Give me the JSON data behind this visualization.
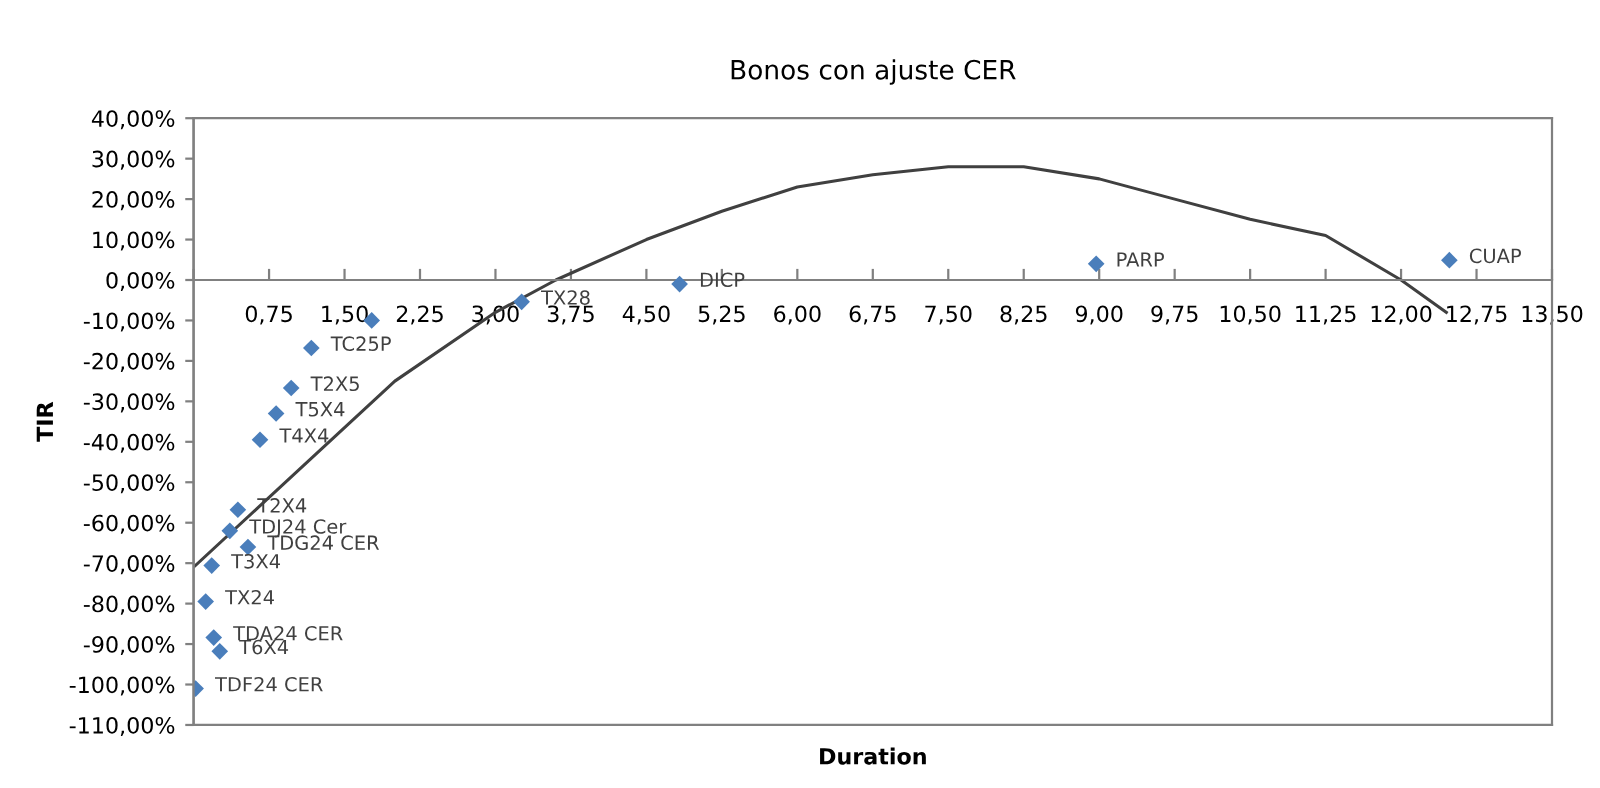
{
  "chart_data": {
    "type": "scatter",
    "title": "Bonos con ajuste CER",
    "xlabel": "Duration",
    "ylabel": "TIR",
    "xlim": [
      0,
      13.5
    ],
    "ylim": [
      -110,
      40
    ],
    "xticks": [
      {
        "value": 0,
        "label": null
      },
      {
        "value": 0.75,
        "label": "0,75"
      },
      {
        "value": 1.5,
        "label": "1,50"
      },
      {
        "value": 2.25,
        "label": "2,25"
      },
      {
        "value": 3.0,
        "label": "3,00"
      },
      {
        "value": 3.75,
        "label": "3,75"
      },
      {
        "value": 4.5,
        "label": "4,50"
      },
      {
        "value": 5.25,
        "label": "5,25"
      },
      {
        "value": 6.0,
        "label": "6,00"
      },
      {
        "value": 6.75,
        "label": "6,75"
      },
      {
        "value": 7.5,
        "label": "7,50"
      },
      {
        "value": 8.25,
        "label": "8,25"
      },
      {
        "value": 9.0,
        "label": "9,00"
      },
      {
        "value": 9.75,
        "label": "9,75"
      },
      {
        "value": 10.5,
        "label": "10,50"
      },
      {
        "value": 11.25,
        "label": "11,25"
      },
      {
        "value": 12.0,
        "label": "12,00"
      },
      {
        "value": 12.75,
        "label": "12,75"
      },
      {
        "value": 13.5,
        "label": "13,50"
      }
    ],
    "yticks": [
      {
        "value": 40,
        "label": "40,00%"
      },
      {
        "value": 30,
        "label": "30,00%"
      },
      {
        "value": 20,
        "label": "20,00%"
      },
      {
        "value": 10,
        "label": "10,00%"
      },
      {
        "value": 0,
        "label": "0,00%"
      },
      {
        "value": -10,
        "label": "-10,00%"
      },
      {
        "value": -20,
        "label": "-20,00%"
      },
      {
        "value": -30,
        "label": "-30,00%"
      },
      {
        "value": -40,
        "label": "-40,00%"
      },
      {
        "value": -50,
        "label": "-50,00%"
      },
      {
        "value": -60,
        "label": "-60,00%"
      },
      {
        "value": -70,
        "label": "-70,00%"
      },
      {
        "value": -80,
        "label": "-80,00%"
      },
      {
        "value": -90,
        "label": "-90,00%"
      },
      {
        "value": -100,
        "label": "-100,00%"
      },
      {
        "value": -110,
        "label": "-110,00%"
      }
    ],
    "grid": false,
    "legend": false,
    "marker": "diamond",
    "series": [
      {
        "color": "#4a7ebb",
        "x": [
          12.48,
          8.97,
          4.83,
          3.26,
          1.77,
          1.17,
          0.97,
          0.82,
          0.66,
          0.44,
          0.36,
          0.54,
          0.18,
          0.12,
          0.2,
          0.26,
          0.02
        ],
        "values": [
          4.9,
          4.0,
          -1,
          -5.4,
          -10,
          -16.8,
          -26.7,
          -33,
          -39.5,
          -56.8,
          -62,
          -66,
          -70.6,
          -79.5,
          -88.4,
          -91.8,
          -101
        ]
      },
      {
        "type": "line",
        "color": "#404040",
        "marker": "none",
        "x": [
          0,
          1,
          2,
          3,
          3.6,
          4.5,
          5.25,
          6,
          6.75,
          7.5,
          8.25,
          9,
          9.75,
          10.5,
          11.25,
          12,
          12.45
        ],
        "values": [
          -71,
          -48,
          -25,
          -8,
          0,
          10,
          17,
          23,
          26,
          28,
          28,
          25,
          20,
          15,
          11,
          0,
          -8
        ]
      }
    ],
    "annotations": [
      {
        "text": "CUAP",
        "x": 12.48,
        "y": 4.9
      },
      {
        "text": "PARP",
        "x": 8.97,
        "y": 4.0
      },
      {
        "text": "DICP",
        "x": 4.83,
        "y": -1
      },
      {
        "text": "TX28",
        "x": 3.26,
        "y": -5.4
      },
      {
        "text": "TC25P",
        "x": 1.17,
        "y": -16.8
      },
      {
        "text": "T2X5",
        "x": 0.97,
        "y": -26.7
      },
      {
        "text": "T5X4",
        "x": 0.82,
        "y": -33
      },
      {
        "text": "T4X4",
        "x": 0.66,
        "y": -39.5
      },
      {
        "text": "T2X4",
        "x": 0.44,
        "y": -56.8
      },
      {
        "text": "TDJ24 Cer",
        "x": 0.36,
        "y": -62
      },
      {
        "text": "TDG24 CER",
        "x": 0.54,
        "y": -66
      },
      {
        "text": "T3X4",
        "x": 0.18,
        "y": -70.6
      },
      {
        "text": "TX24",
        "x": 0.12,
        "y": -79.5
      },
      {
        "text": "TDA24 CER",
        "x": 0.2,
        "y": -88.4
      },
      {
        "text": "T6X4",
        "x": 0.26,
        "y": -91.8
      },
      {
        "text": "TDF24 CER",
        "x": 0.02,
        "y": -101
      }
    ]
  }
}
